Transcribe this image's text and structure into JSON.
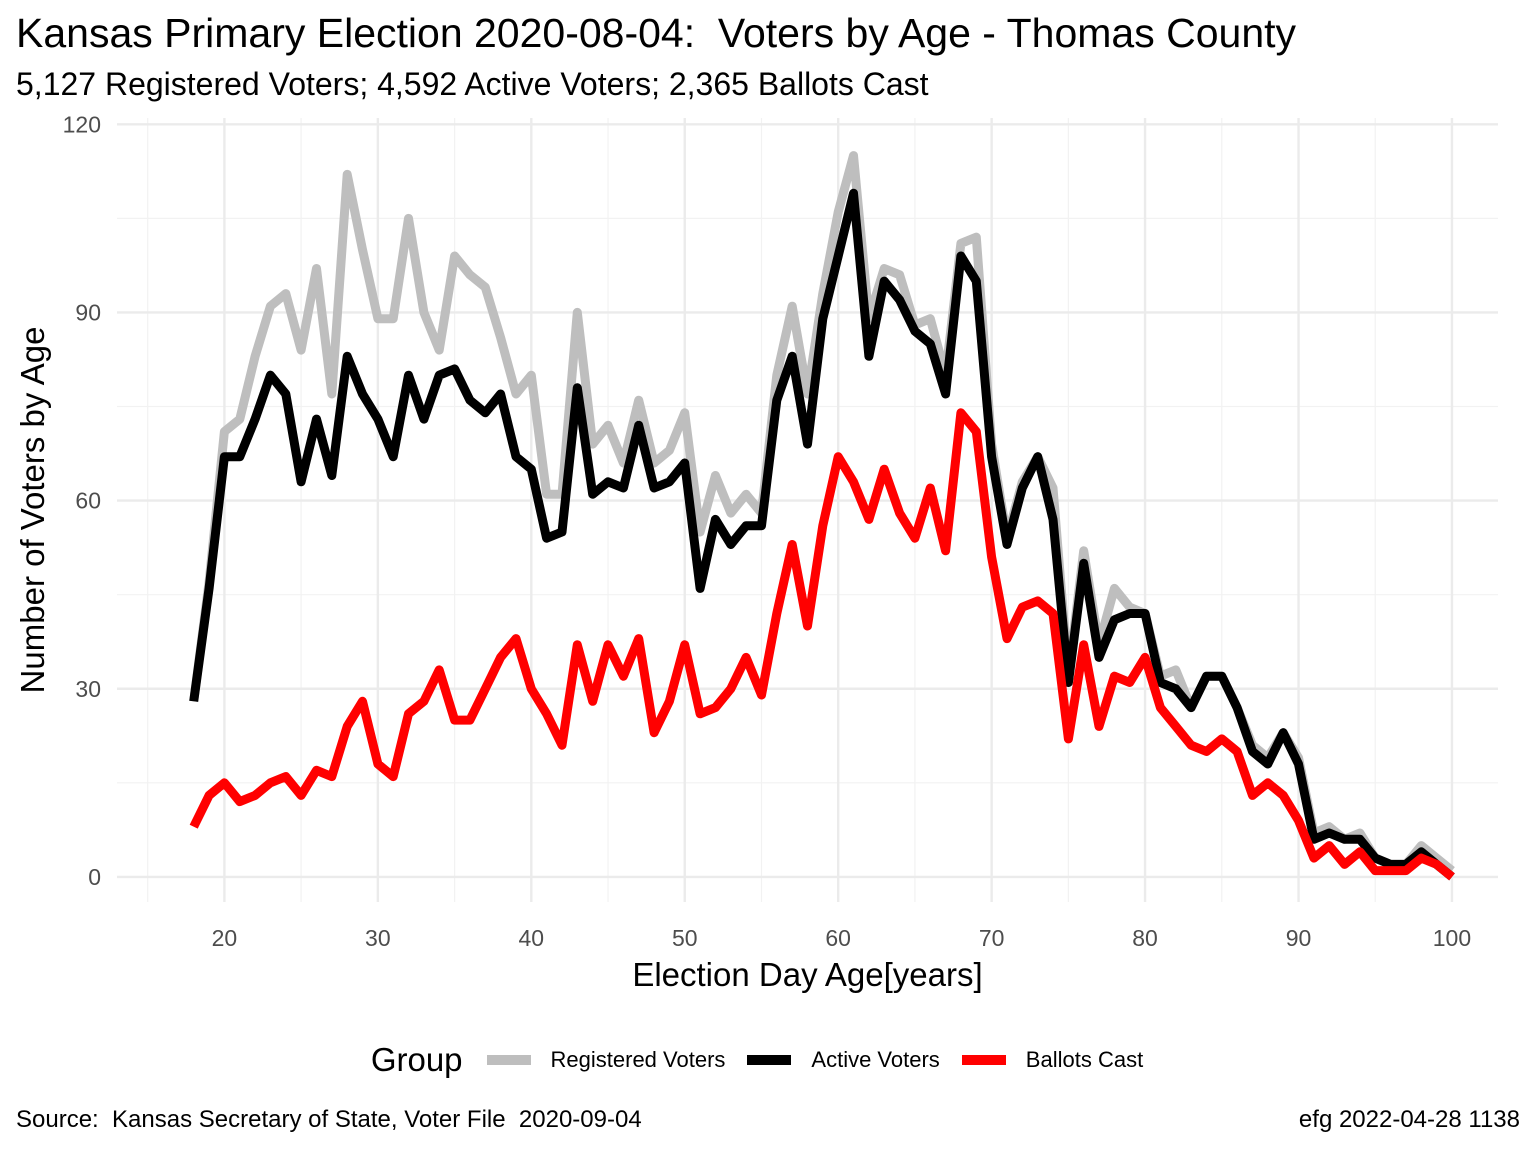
{
  "chart_data": {
    "type": "line",
    "title": "Kansas Primary Election 2020-08-04:  Voters by Age - Thomas County",
    "subtitle": "5,127 Registered Voters; 4,592 Active Voters; 2,365 Ballots Cast",
    "xlabel": "Election Day Age[years]",
    "ylabel": "Number of Voters by Age",
    "xlim": [
      13,
      103
    ],
    "ylim": [
      -4,
      121
    ],
    "x_ticks": [
      20,
      30,
      40,
      50,
      60,
      70,
      80,
      90,
      100
    ],
    "y_ticks": [
      0,
      30,
      60,
      90,
      120
    ],
    "grid": true,
    "legend_title": "Group",
    "legend_position": "bottom",
    "caption_left": "Source:  Kansas Secretary of State, Voter File  2020-09-04",
    "caption_right": "efg 2022-04-28 1138",
    "x": [
      18,
      19,
      20,
      21,
      22,
      23,
      24,
      25,
      26,
      27,
      28,
      29,
      30,
      31,
      32,
      33,
      34,
      35,
      36,
      37,
      38,
      39,
      40,
      41,
      42,
      43,
      44,
      45,
      46,
      47,
      48,
      49,
      50,
      51,
      52,
      53,
      54,
      55,
      56,
      57,
      58,
      59,
      60,
      61,
      62,
      63,
      64,
      65,
      66,
      67,
      68,
      69,
      70,
      71,
      72,
      73,
      74,
      75,
      76,
      77,
      78,
      79,
      80,
      81,
      82,
      83,
      84,
      85,
      86,
      87,
      88,
      89,
      90,
      91,
      92,
      93,
      94,
      95,
      96,
      97,
      98,
      99,
      100
    ],
    "series": [
      {
        "name": "Registered Voters",
        "color": "#bebebe",
        "values": [
          28,
          47,
          71,
          73,
          83,
          91,
          93,
          84,
          97,
          77,
          112,
          100,
          89,
          89,
          105,
          90,
          84,
          99,
          96,
          94,
          86,
          77,
          80,
          61,
          61,
          90,
          69,
          72,
          66,
          76,
          66,
          68,
          74,
          55,
          64,
          58,
          61,
          58,
          80,
          91,
          77,
          93,
          106,
          115,
          89,
          97,
          96,
          88,
          89,
          80,
          101,
          102,
          69,
          54,
          63,
          67,
          62,
          32,
          52,
          37,
          46,
          43,
          42,
          32,
          33,
          27,
          32,
          32,
          27,
          21,
          19,
          23,
          19,
          7,
          8,
          6,
          7,
          3,
          2,
          2,
          5,
          3,
          1
        ]
      },
      {
        "name": "Active Voters",
        "color": "#000000",
        "values": [
          28,
          46,
          67,
          67,
          73,
          80,
          77,
          63,
          73,
          64,
          83,
          77,
          73,
          67,
          80,
          73,
          80,
          81,
          76,
          74,
          77,
          67,
          65,
          54,
          55,
          78,
          61,
          63,
          62,
          72,
          62,
          63,
          66,
          46,
          57,
          53,
          56,
          56,
          76,
          83,
          69,
          89,
          99,
          109,
          83,
          95,
          92,
          87,
          85,
          77,
          99,
          95,
          67,
          53,
          62,
          67,
          57,
          31,
          50,
          35,
          41,
          42,
          42,
          31,
          30,
          27,
          32,
          32,
          27,
          20,
          18,
          23,
          18,
          6,
          7,
          6,
          6,
          3,
          2,
          2,
          4,
          2,
          0
        ]
      },
      {
        "name": "Ballots Cast",
        "color": "#ff0000",
        "values": [
          8,
          13,
          15,
          12,
          13,
          15,
          16,
          13,
          17,
          16,
          24,
          28,
          18,
          16,
          26,
          28,
          33,
          25,
          25,
          30,
          35,
          38,
          30,
          26,
          21,
          37,
          28,
          37,
          32,
          38,
          23,
          28,
          37,
          26,
          27,
          30,
          35,
          29,
          42,
          53,
          40,
          56,
          67,
          63,
          57,
          65,
          58,
          54,
          62,
          52,
          74,
          71,
          51,
          38,
          43,
          44,
          42,
          22,
          37,
          24,
          32,
          31,
          35,
          27,
          24,
          21,
          20,
          22,
          20,
          13,
          15,
          13,
          9,
          3,
          5,
          2,
          4,
          1,
          1,
          1,
          3,
          2,
          0
        ]
      }
    ]
  }
}
